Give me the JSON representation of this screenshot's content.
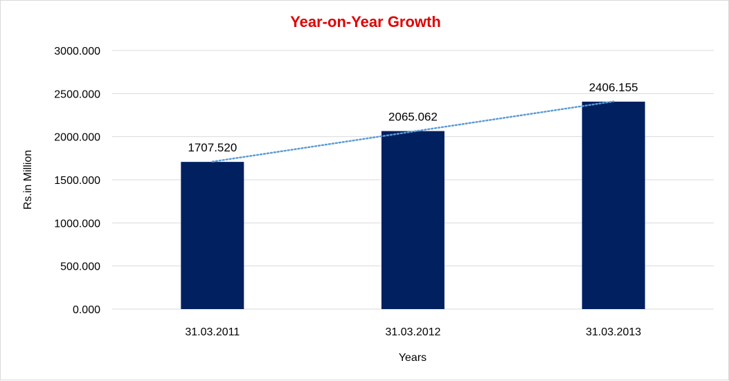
{
  "chart_data": {
    "type": "bar",
    "title": "Year-on-Year Growth",
    "title_color": "#e00000",
    "xlabel": "Years",
    "ylabel": "Rs.in Million",
    "categories": [
      "31.03.2011",
      "31.03.2012",
      "31.03.2013"
    ],
    "values": [
      1707.52,
      2065.062,
      2406.155
    ],
    "data_labels": [
      "1707.520",
      "2065.062",
      "2406.155"
    ],
    "ylim": [
      0,
      3000
    ],
    "yticks": [
      0,
      500,
      1000,
      1500,
      2000,
      2500,
      3000
    ],
    "ytick_labels": [
      "0.000",
      "500.000",
      "1000.000",
      "1500.000",
      "2000.000",
      "2500.000",
      "3000.000"
    ],
    "bar_color": "#002060",
    "trendline": {
      "type": "linear",
      "style": "dotted",
      "color": "#5b9bd5"
    },
    "grid": true,
    "legend": "none"
  }
}
